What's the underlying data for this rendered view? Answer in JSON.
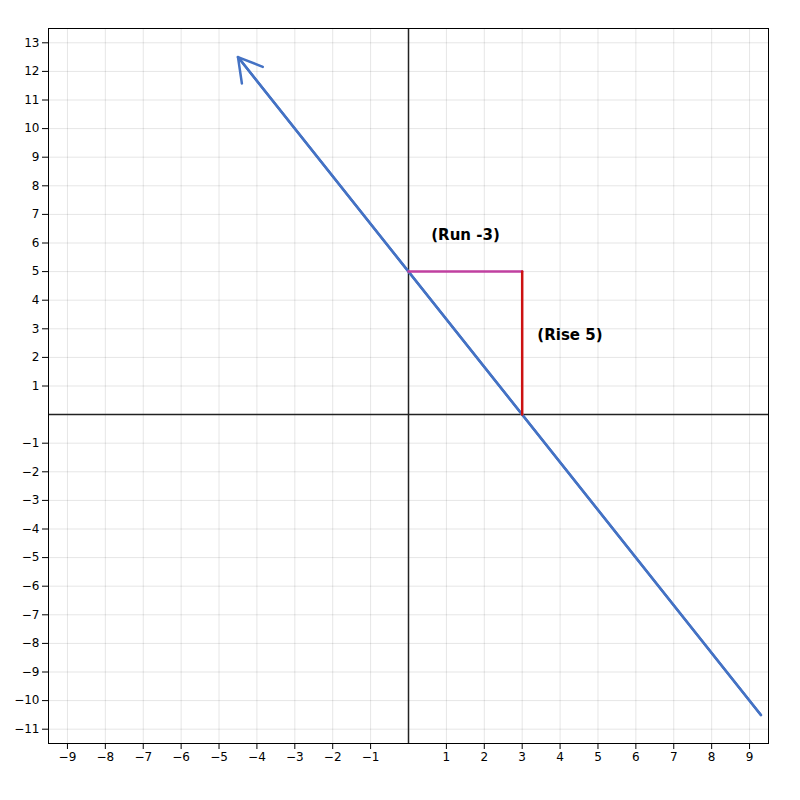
{
  "chart_data": {
    "type": "line",
    "xlim": [
      -9.5,
      9.5
    ],
    "ylim": [
      -11.5,
      13.5
    ],
    "xticks": [
      -9,
      -8,
      -7,
      -6,
      -5,
      -4,
      -3,
      -2,
      -1,
      1,
      2,
      3,
      4,
      5,
      6,
      7,
      8,
      9
    ],
    "yticks": [
      -11,
      -10,
      -9,
      -8,
      -7,
      -6,
      -5,
      -4,
      -3,
      -2,
      -1,
      1,
      2,
      3,
      4,
      5,
      6,
      7,
      8,
      9,
      10,
      11,
      12,
      13
    ],
    "grid": true,
    "series": [
      {
        "x": [
          9.3,
          -4.5
        ],
        "values": [
          -10.50031,
          12.50015
        ],
        "color": "#4472C4",
        "marker": "arrow"
      },
      {
        "x": [
          0,
          3
        ],
        "values": [
          5,
          5
        ],
        "color": "#C040A0"
      },
      {
        "x": [
          3,
          3
        ],
        "values": [
          5,
          0
        ],
        "color": "#CC1111"
      }
    ],
    "annotations": [
      {
        "text": "(Run -3)",
        "x": 0.6,
        "y": 6.1
      },
      {
        "text": "(Rise 5)",
        "x": 3.4,
        "y": 2.6
      }
    ]
  }
}
